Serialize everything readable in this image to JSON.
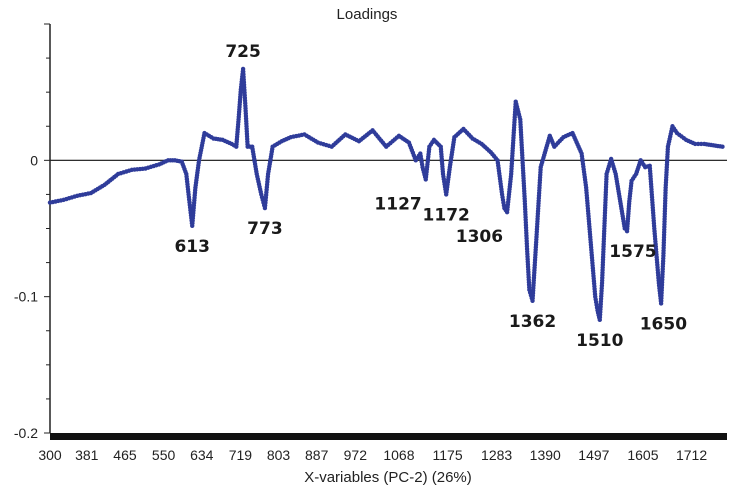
{
  "chart_data": {
    "type": "line",
    "title": "Loadings",
    "xlabel": "X-variables (PC-2) (26%)",
    "ylabel": "",
    "xlim": [
      300,
      1790
    ],
    "ylim": [
      -0.2,
      0.1
    ],
    "x_tick_labels": [
      "300",
      "381",
      "465",
      "550",
      "634",
      "719",
      "803",
      "887",
      "972",
      "1068",
      "1175",
      "1283",
      "1390",
      "1497",
      "1605",
      "1712"
    ],
    "x_tick_values": [
      300,
      381,
      465,
      550,
      634,
      719,
      803,
      887,
      972,
      1068,
      1175,
      1283,
      1390,
      1497,
      1605,
      1712
    ],
    "y_tick_labels": [
      "0",
      "-0.1",
      "-0.2"
    ],
    "y_tick_values": [
      0,
      -0.1,
      -0.2
    ],
    "series_color": "#2f3c9a",
    "zero_line": true,
    "series": [
      {
        "x": [
          300,
          330,
          360,
          390,
          420,
          450,
          480,
          510,
          540,
          560,
          575,
          590,
          600,
          605,
          613,
          620,
          628,
          640,
          660,
          680,
          700,
          710,
          715,
          720,
          725,
          730,
          735,
          745,
          755,
          765,
          773,
          780,
          790,
          810,
          830,
          860,
          890,
          920,
          950,
          980,
          1010,
          1040,
          1068,
          1090,
          1105,
          1115,
          1120,
          1127,
          1135,
          1145,
          1160,
          1165,
          1172,
          1180,
          1190,
          1210,
          1230,
          1250,
          1270,
          1285,
          1295,
          1300,
          1306,
          1315,
          1325,
          1335,
          1345,
          1350,
          1355,
          1362,
          1370,
          1380,
          1400,
          1410,
          1430,
          1450,
          1470,
          1480,
          1490,
          1500,
          1505,
          1510,
          1515,
          1525,
          1535,
          1545,
          1555,
          1565,
          1570,
          1575,
          1580,
          1590,
          1600,
          1610,
          1620,
          1630,
          1640,
          1645,
          1650,
          1655,
          1660,
          1670,
          1680,
          1700,
          1720,
          1740,
          1760,
          1780
        ],
        "y": [
          -0.031,
          -0.029,
          -0.026,
          -0.024,
          -0.018,
          -0.01,
          -0.007,
          -0.006,
          -0.003,
          0.0,
          0.0,
          -0.001,
          -0.01,
          -0.025,
          -0.048,
          -0.02,
          0.0,
          0.02,
          0.016,
          0.015,
          0.012,
          0.01,
          0.03,
          0.052,
          0.067,
          0.04,
          0.01,
          0.01,
          -0.01,
          -0.025,
          -0.035,
          -0.01,
          0.01,
          0.014,
          0.017,
          0.019,
          0.013,
          0.01,
          0.019,
          0.014,
          0.022,
          0.01,
          0.018,
          0.013,
          0.0,
          0.005,
          -0.005,
          -0.014,
          0.01,
          0.015,
          0.01,
          -0.01,
          -0.025,
          -0.005,
          0.017,
          0.023,
          0.016,
          0.012,
          0.006,
          0.0,
          -0.025,
          -0.035,
          -0.038,
          -0.01,
          0.043,
          0.03,
          -0.03,
          -0.065,
          -0.095,
          -0.103,
          -0.06,
          -0.005,
          0.018,
          0.01,
          0.017,
          0.02,
          0.005,
          -0.02,
          -0.06,
          -0.1,
          -0.11,
          -0.117,
          -0.09,
          -0.01,
          0.001,
          -0.01,
          -0.03,
          -0.05,
          -0.052,
          -0.03,
          -0.015,
          -0.01,
          0.0,
          -0.005,
          -0.004,
          -0.05,
          -0.09,
          -0.105,
          -0.07,
          -0.02,
          0.01,
          0.025,
          0.02,
          0.015,
          0.012,
          0.012,
          0.011,
          0.01
        ]
      }
    ],
    "annotations": [
      {
        "text": "725",
        "x": 725,
        "y": 0.067,
        "pos": "above"
      },
      {
        "text": "613",
        "x": 613,
        "y": -0.048,
        "pos": "below"
      },
      {
        "text": "773",
        "x": 773,
        "y": -0.035,
        "pos": "below"
      },
      {
        "text": "1127",
        "x": 1127,
        "y": -0.014,
        "pos": "below-left"
      },
      {
        "text": "1172",
        "x": 1172,
        "y": -0.025,
        "pos": "below"
      },
      {
        "text": "1306",
        "x": 1306,
        "y": -0.038,
        "pos": "below-left"
      },
      {
        "text": "1362",
        "x": 1362,
        "y": -0.103,
        "pos": "below"
      },
      {
        "text": "1510",
        "x": 1510,
        "y": -0.117,
        "pos": "below"
      },
      {
        "text": "1575",
        "x": 1575,
        "y": -0.052,
        "pos": "below-right"
      },
      {
        "text": "1650",
        "x": 1650,
        "y": -0.105,
        "pos": "below"
      }
    ]
  }
}
